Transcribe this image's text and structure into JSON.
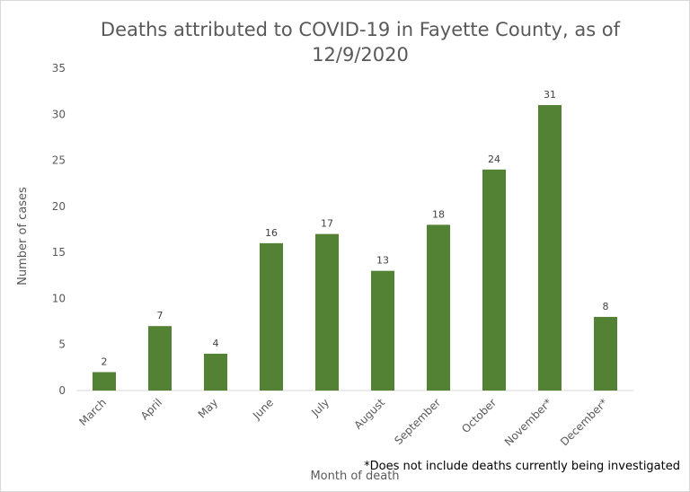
{
  "chart_data": {
    "type": "bar",
    "title": "Deaths attributed to COVID-19 in Fayette County, as of 12/9/2020",
    "xlabel": "Month of death",
    "ylabel": "Number of cases",
    "categories": [
      "March",
      "April",
      "May",
      "June",
      "July",
      "August",
      "September",
      "October",
      "November*",
      "December*"
    ],
    "values": [
      2,
      7,
      4,
      16,
      17,
      13,
      18,
      24,
      31,
      8
    ],
    "data_labels": [
      "2",
      "7",
      "4",
      "16",
      "17",
      "13",
      "18",
      "24",
      "31",
      "8"
    ],
    "ylim": [
      0,
      35
    ],
    "y_ticks": [
      "0",
      "5",
      "10",
      "15",
      "20",
      "25",
      "30",
      "35"
    ],
    "grid": false,
    "legend": "none",
    "bar_color": "#548235",
    "footnote": "*Does not include deaths currently being investigated"
  }
}
